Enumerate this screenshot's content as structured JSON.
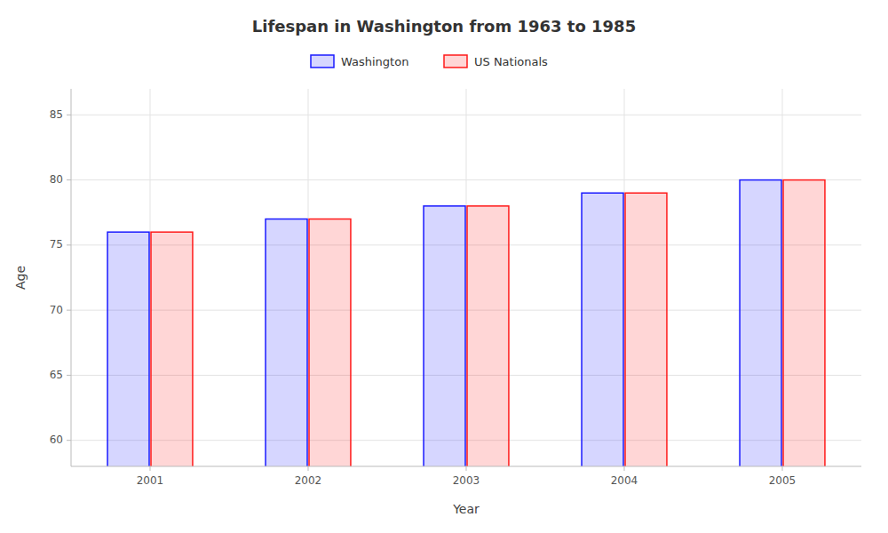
{
  "chart_data": {
    "type": "bar",
    "title": "Lifespan in Washington from 1963 to 1985",
    "xlabel": "Year",
    "ylabel": "Age",
    "categories": [
      "2001",
      "2002",
      "2003",
      "2004",
      "2005"
    ],
    "series": [
      {
        "name": "Washington",
        "color": "#1a1aff",
        "values": [
          76,
          77,
          78,
          79,
          80
        ]
      },
      {
        "name": "US Nationals",
        "color": "#ff1a1a",
        "values": [
          76,
          77,
          78,
          79,
          80
        ]
      }
    ],
    "ylim": [
      58,
      87
    ],
    "yticks": [
      60,
      65,
      70,
      75,
      80,
      85
    ],
    "grid": true,
    "legend": "top"
  }
}
